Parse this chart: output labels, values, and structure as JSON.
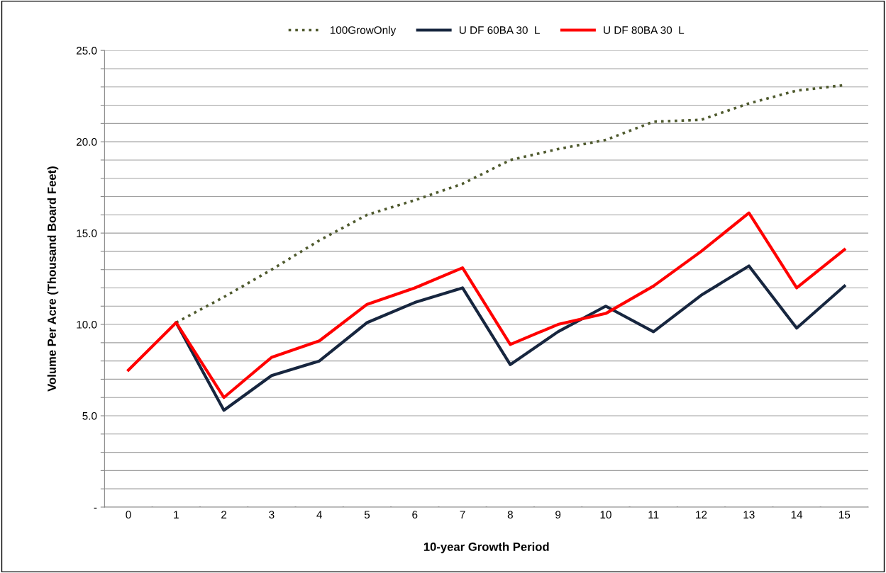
{
  "chart_data": {
    "type": "line",
    "xlabel": "10-year Growth Period",
    "ylabel": "Volume Per Acre (Thousand Board Feet)",
    "categories": [
      "0",
      "1",
      "2",
      "3",
      "4",
      "5",
      "6",
      "7",
      "8",
      "9",
      "10",
      "11",
      "12",
      "13",
      "14",
      "15"
    ],
    "series": [
      {
        "name": "100GrowOnly",
        "color": "#4f5a2e",
        "line_style": "dotted",
        "values": [
          null,
          10.1,
          11.5,
          13.0,
          14.6,
          16.0,
          16.8,
          17.7,
          19.0,
          19.6,
          20.1,
          21.1,
          21.2,
          22.1,
          22.8,
          23.1
        ]
      },
      {
        "name": "U DF 60BA 30  L",
        "color": "#17263f",
        "line_style": "solid",
        "values": [
          null,
          10.1,
          5.3,
          7.2,
          8.0,
          10.1,
          11.2,
          12.0,
          7.8,
          9.6,
          11.0,
          9.6,
          11.6,
          13.2,
          9.8,
          12.1
        ]
      },
      {
        "name": "U DF 80BA 30  L",
        "color": "#ff0000",
        "line_style": "solid",
        "values": [
          7.5,
          10.1,
          6.0,
          8.2,
          9.1,
          11.1,
          12.0,
          13.1,
          8.9,
          10.0,
          10.6,
          12.1,
          14.0,
          16.1,
          12.0,
          14.1
        ]
      }
    ],
    "ylim": [
      0,
      25
    ],
    "yticks": [
      {
        "value": 0,
        "label": "-"
      },
      {
        "value": 1,
        "label": null
      },
      {
        "value": 2,
        "label": null
      },
      {
        "value": 3,
        "label": null
      },
      {
        "value": 4,
        "label": null
      },
      {
        "value": 5,
        "label": "5.0"
      },
      {
        "value": 6,
        "label": null
      },
      {
        "value": 7,
        "label": null
      },
      {
        "value": 8,
        "label": null
      },
      {
        "value": 9,
        "label": null
      },
      {
        "value": 10,
        "label": "10.0"
      },
      {
        "value": 11,
        "label": null
      },
      {
        "value": 12,
        "label": null
      },
      {
        "value": 13,
        "label": null
      },
      {
        "value": 14,
        "label": null
      },
      {
        "value": 15,
        "label": "15.0"
      },
      {
        "value": 16,
        "label": null
      },
      {
        "value": 17,
        "label": null
      },
      {
        "value": 18,
        "label": null
      },
      {
        "value": 19,
        "label": null
      },
      {
        "value": 20,
        "label": "20.0"
      },
      {
        "value": 21,
        "label": null
      },
      {
        "value": 22,
        "label": null
      },
      {
        "value": 23,
        "label": null
      },
      {
        "value": 24,
        "label": null
      },
      {
        "value": 25,
        "label": "25.0"
      }
    ],
    "grid": "y",
    "legend": "top",
    "marker": "none"
  }
}
